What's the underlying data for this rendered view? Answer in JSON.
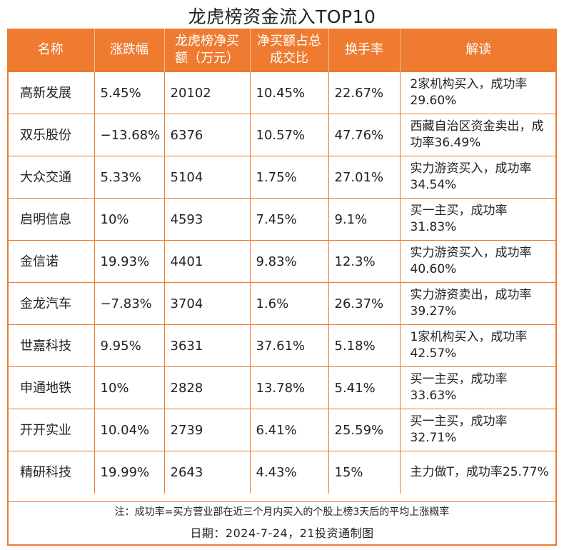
{
  "title": "龙虎榜资金流入TOP10",
  "colors": {
    "accent": "#ee7b30",
    "header_text": "#ffffff"
  },
  "columns": [
    "名称",
    "涨跌幅",
    "龙虎榜净买额（万元）",
    "净买额占总成交比",
    "换手率",
    "解读"
  ],
  "rows": [
    [
      "高新发展",
      "5.45%",
      "20102",
      "10.45%",
      "22.67%",
      "2家机构买入，成功率29.60%"
    ],
    [
      "双乐股份",
      "−13.68%",
      "6376",
      "10.57%",
      "47.76%",
      "西藏自治区资金卖出，成功率36.49%"
    ],
    [
      "大众交通",
      "5.33%",
      "5104",
      "1.75%",
      "27.01%",
      "实力游资买入，成功率34.54%"
    ],
    [
      "启明信息",
      "10%",
      "4593",
      "7.45%",
      "9.1%",
      "买一主买，成功率31.83%"
    ],
    [
      "金信诺",
      "19.93%",
      "4401",
      "9.83%",
      "12.3%",
      "实力游资买入，成功率40.60%"
    ],
    [
      "金龙汽车",
      "−7.83%",
      "3704",
      "1.6%",
      "26.37%",
      "实力游资卖出，成功率39.27%"
    ],
    [
      "世嘉科技",
      "9.95%",
      "3631",
      "37.61%",
      "5.18%",
      "1家机构买入，成功率42.57%"
    ],
    [
      "申通地铁",
      "10%",
      "2828",
      "13.78%",
      "5.41%",
      "买一主买，成功率33.63%"
    ],
    [
      "开开实业",
      "10.04%",
      "2739",
      "6.41%",
      "25.59%",
      "买一主买，成功率32.71%"
    ],
    [
      "精研科技",
      "19.99%",
      "2643",
      "4.43%",
      "15%",
      "主力做T，成功率25.77%"
    ]
  ],
  "footnote": "注：成功率=买方营业部在近三个月内买入的个股上榜3天后的平均上涨概率",
  "date_line": "日期：2024-7-24，21投资通制图"
}
